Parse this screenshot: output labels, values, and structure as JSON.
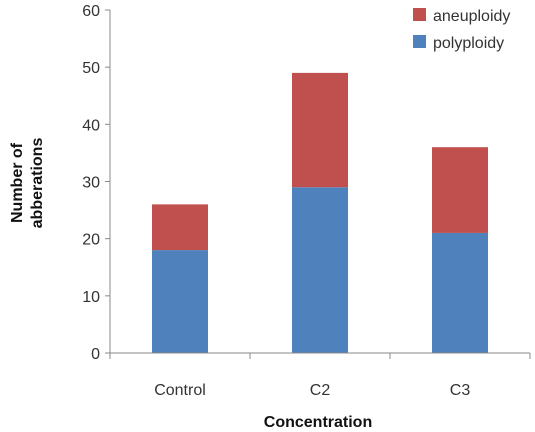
{
  "chart_data": {
    "type": "bar",
    "stacked": true,
    "categories": [
      "Control",
      "C2",
      "C3"
    ],
    "series": [
      {
        "name": "polyploidy",
        "color": "#4F81BD",
        "values": [
          18,
          29,
          21
        ]
      },
      {
        "name": "aneuploidy",
        "color": "#C0504D",
        "values": [
          8,
          20,
          15
        ]
      }
    ],
    "xlabel": "Concentration",
    "ylabel_lines": [
      "Number of",
      "abberations"
    ],
    "ylim": [
      0,
      60
    ],
    "yticks": [
      0,
      10,
      20,
      30,
      40,
      50,
      60
    ],
    "legend_order": [
      "aneuploidy",
      "polyploidy"
    ],
    "legend_position": "top-right",
    "grid": false
  }
}
